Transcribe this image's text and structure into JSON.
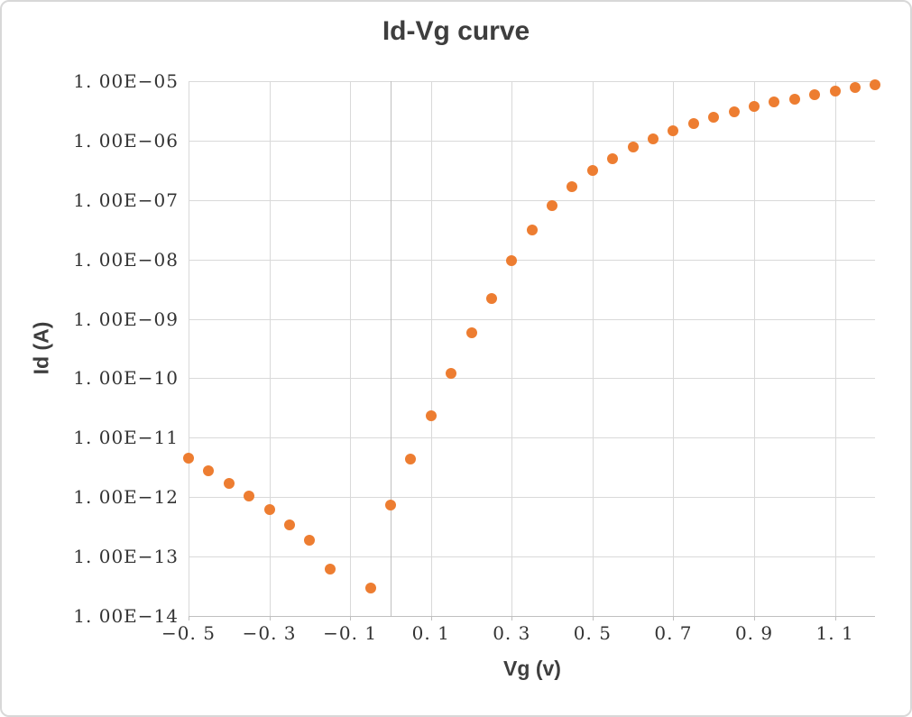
{
  "chart_data": {
    "type": "scatter",
    "title": "Id-Vg curve",
    "xlabel": "Vg (v)",
    "ylabel": "Id (A)",
    "grid": true,
    "legend": false,
    "x_axis": {
      "min": -0.5,
      "max": 1.2,
      "major_unit": 0.2,
      "tick_values": [
        -0.5,
        -0.3,
        -0.1,
        0.1,
        0.3,
        0.5,
        0.7,
        0.9,
        1.1
      ],
      "tick_labels": [
        "−0. 5",
        "−0. 3",
        "−0. 1",
        "0. 1",
        "0. 3",
        "0. 5",
        "0. 7",
        "0. 9",
        "1. 1"
      ]
    },
    "y_axis": {
      "scale": "log",
      "min": 1e-14,
      "max": 1e-05,
      "tick_values": [
        1e-05,
        1e-06,
        1e-07,
        1e-08,
        1e-09,
        1e-10,
        1e-11,
        1e-12,
        1e-13,
        1e-14
      ],
      "tick_labels": [
        "1. 00E−05",
        "1. 00E−06",
        "1. 00E−07",
        "1. 00E−08",
        "1. 00E−09",
        "1. 00E−10",
        "1. 00E−11",
        "1. 00E−12",
        "1. 00E−13",
        "1. 00E−14"
      ]
    },
    "series": [
      {
        "name": "Id",
        "marker": "circle",
        "color": "#ED7D31",
        "x": [
          -0.5,
          -0.45,
          -0.4,
          -0.35,
          -0.3,
          -0.25,
          -0.2,
          -0.15,
          -0.05,
          0.0,
          0.05,
          0.1,
          0.15,
          0.2,
          0.25,
          0.3,
          0.35,
          0.4,
          0.45,
          0.5,
          0.55,
          0.6,
          0.65,
          0.7,
          0.75,
          0.8,
          0.85,
          0.9,
          0.95,
          1.0,
          1.05,
          1.1,
          1.15,
          1.2
        ],
        "y": [
          4.5e-12,
          2.8e-12,
          1.7e-12,
          1.05e-12,
          6.2e-13,
          3.4e-13,
          1.9e-13,
          6.2e-14,
          3e-14,
          7.4e-13,
          4.4e-12,
          2.3e-11,
          1.2e-10,
          5.8e-10,
          2.2e-09,
          9.4e-09,
          3.1e-08,
          8e-08,
          1.65e-07,
          3.1e-07,
          4.9e-07,
          7.8e-07,
          1.05e-06,
          1.45e-06,
          1.95e-06,
          2.5e-06,
          3.1e-06,
          3.7e-06,
          4.4e-06,
          5e-06,
          5.9e-06,
          6.8e-06,
          7.9e-06,
          8.6e-06
        ]
      }
    ],
    "colors": {
      "marker": "#ED7D31",
      "gridline": "#D9D9D9",
      "axis_line": "#BFBFBF",
      "text": "#3E3E3E",
      "tick_text": "#333333",
      "background": "#FFFFFF",
      "border": "#D8D8D8"
    }
  }
}
